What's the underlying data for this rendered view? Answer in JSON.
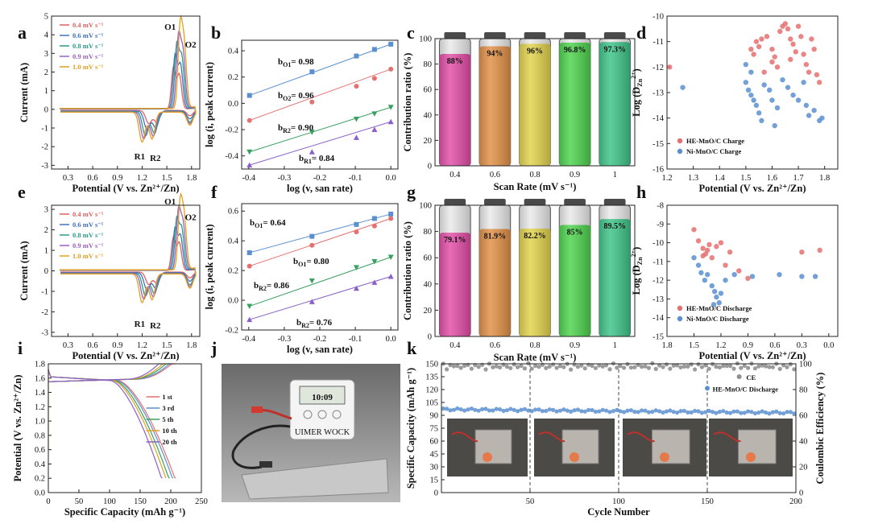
{
  "panel_labels": [
    "a",
    "b",
    "c",
    "d",
    "e",
    "f",
    "g",
    "h",
    "i",
    "j",
    "k"
  ],
  "colors": {
    "c04": "#e06060",
    "c06": "#3f70c0",
    "c08": "#2a9a8a",
    "c09": "#9a60c0",
    "c10": "#e0a020",
    "red": "#e57070",
    "blue": "#5b8fd0",
    "green": "#3aa060",
    "purple": "#8a60c8",
    "teal": "#4ab0c0",
    "gray": "#909090"
  },
  "chart_data": [
    {
      "id": "a",
      "type": "line",
      "xlabel": "Potential (V vs. Zn²⁺/Zn)",
      "ylabel": "Current (mA)",
      "xlim": [
        0.1,
        1.9
      ],
      "ylim": [
        -3.2,
        5
      ],
      "xticks": [
        "0.3",
        "0.6",
        "0.9",
        "1.2",
        "1.5",
        "1.8"
      ],
      "yticks": [
        "-3",
        "-2",
        "-1",
        "0",
        "1",
        "2",
        "3",
        "4",
        "5"
      ],
      "legend": [
        "0.4 mV s⁻¹",
        "0.6 mV s⁻¹",
        "0.8 mV s⁻¹",
        "0.9 mV s⁻¹",
        "1.0 mV s⁻¹"
      ],
      "peaks": [
        "O1",
        "O2",
        "R1",
        "R2"
      ],
      "scan_rates": [
        0.4,
        0.6,
        0.8,
        0.9,
        1.0
      ],
      "o_peak_current": [
        2.2,
        2.8,
        3.3,
        3.6,
        4.0
      ],
      "r_peak_current": [
        -0.7,
        -1.0,
        -1.3,
        -1.45,
        -1.6
      ]
    },
    {
      "id": "b",
      "type": "scatter",
      "xlabel": "log (v, san rate)",
      "ylabel": "log (i, peak current)",
      "xlim": [
        -0.42,
        0.02
      ],
      "ylim": [
        -0.5,
        0.48
      ],
      "xticks": [
        "-0.4",
        "-0.3",
        "-0.2",
        "-0.1",
        "0.0"
      ],
      "yticks": [
        "-0.4",
        "-0.2",
        "0.0",
        "0.2",
        "0.4"
      ],
      "x": [
        -0.398,
        -0.222,
        -0.097,
        -0.046,
        0.0
      ],
      "series": [
        {
          "name": "O1",
          "label": "b",
          "sub": "O1",
          "value": "= 0.98",
          "values": [
            0.06,
            0.24,
            0.36,
            0.41,
            0.45
          ]
        },
        {
          "name": "O2",
          "label": "b",
          "sub": "O2",
          "value": "= 0.96",
          "values": [
            -0.13,
            0.01,
            0.13,
            0.19,
            0.26
          ]
        },
        {
          "name": "R2",
          "label": "b",
          "sub": "R2",
          "value": "= 0.90",
          "values": [
            -0.37,
            -0.22,
            -0.12,
            -0.08,
            -0.03
          ]
        },
        {
          "name": "R1",
          "label": "b",
          "sub": "R1",
          "value": "= 0.84",
          "values": [
            -0.47,
            -0.37,
            -0.26,
            -0.2,
            -0.14
          ]
        }
      ]
    },
    {
      "id": "c",
      "type": "bar",
      "xlabel": "Scan Rate (mV s⁻¹)",
      "ylabel": "Contribution ratio (%)",
      "ylim": [
        0,
        100
      ],
      "yticks": [
        "0",
        "20",
        "40",
        "60",
        "80",
        "100"
      ],
      "categories": [
        "0.4",
        "0.6",
        "0.8",
        "0.9",
        "1"
      ],
      "values": [
        88,
        94,
        96,
        96.8,
        97.3
      ],
      "labels": [
        "88%",
        "94%",
        "96%",
        "96.8%",
        "97.3%"
      ]
    },
    {
      "id": "d",
      "type": "scatter",
      "xlabel": "Potential (V vs. Zn²⁺/Zn)",
      "ylabel": "Log (D",
      "ylabel_sub": "Zn",
      "ylabel_sup": "2+",
      "ylabel_end": ")",
      "xlim": [
        1.2,
        1.85
      ],
      "ylim": [
        -16,
        -10
      ],
      "xticks": [
        "1.2",
        "1.3",
        "1.4",
        "1.5",
        "1.6",
        "1.7",
        "1.8"
      ],
      "yticks": [
        "-16",
        "-15",
        "-14",
        "-13",
        "-12",
        "-11",
        "-10"
      ],
      "legend": [
        "HE-MnO/C Charge",
        "Ni-MnO/C Charge"
      ],
      "series": [
        {
          "name": "HE-MnO/C Charge",
          "points": [
            [
              1.21,
              -12
            ],
            [
              1.52,
              -11.3
            ],
            [
              1.53,
              -11.5
            ],
            [
              1.54,
              -11
            ],
            [
              1.55,
              -11.2
            ],
            [
              1.56,
              -10.9
            ],
            [
              1.58,
              -10.8
            ],
            [
              1.6,
              -11.3
            ],
            [
              1.61,
              -11.6
            ],
            [
              1.62,
              -12
            ],
            [
              1.63,
              -10.6
            ],
            [
              1.64,
              -10.4
            ],
            [
              1.65,
              -10.3
            ],
            [
              1.66,
              -10.5
            ],
            [
              1.67,
              -10.9
            ],
            [
              1.68,
              -11.1
            ],
            [
              1.69,
              -11.4
            ],
            [
              1.7,
              -10.4
            ],
            [
              1.71,
              -10.8
            ],
            [
              1.72,
              -11.5
            ],
            [
              1.73,
              -11.9
            ],
            [
              1.74,
              -12.2
            ],
            [
              1.75,
              -10.9
            ],
            [
              1.76,
              -11.3
            ],
            [
              1.77,
              -12.3
            ],
            [
              1.78,
              -12.6
            ],
            [
              1.6,
              -11.8
            ],
            [
              1.67,
              -11.7
            ],
            [
              1.57,
              -12.2
            ]
          ]
        },
        {
          "name": "Ni-MnO/C Charge",
          "points": [
            [
              1.26,
              -12.8
            ],
            [
              1.5,
              -12.6
            ],
            [
              1.51,
              -12.9
            ],
            [
              1.52,
              -13.1
            ],
            [
              1.53,
              -13.3
            ],
            [
              1.54,
              -13.5
            ],
            [
              1.55,
              -13.8
            ],
            [
              1.57,
              -12.7
            ],
            [
              1.59,
              -12.9
            ],
            [
              1.6,
              -13.3
            ],
            [
              1.62,
              -13.6
            ],
            [
              1.64,
              -12.5
            ],
            [
              1.66,
              -12.8
            ],
            [
              1.68,
              -13.1
            ],
            [
              1.7,
              -13.3
            ],
            [
              1.72,
              -12.6
            ],
            [
              1.73,
              -13.5
            ],
            [
              1.74,
              -13.9
            ],
            [
              1.76,
              -13.7
            ],
            [
              1.78,
              -14.1
            ],
            [
              1.79,
              -14
            ],
            [
              1.56,
              -14.1
            ],
            [
              1.61,
              -14.3
            ],
            [
              1.5,
              -11.9
            ],
            [
              1.52,
              -12.2
            ]
          ]
        }
      ]
    },
    {
      "id": "e",
      "type": "line",
      "xlabel": "Potential (V vs. Zn²⁺/Zn)",
      "ylabel": "Current (mA)",
      "xlim": [
        0.1,
        1.9
      ],
      "ylim": [
        -3.2,
        3.2
      ],
      "xticks": [
        "0.3",
        "0.6",
        "0.9",
        "1.2",
        "1.5",
        "1.8"
      ],
      "yticks": [
        "-3",
        "-2",
        "-1",
        "0",
        "1",
        "2",
        "3"
      ],
      "legend": [
        "0.4 mV s⁻¹",
        "0.6 mV s⁻¹",
        "0.8 mV s⁻¹",
        "0.9 mV s⁻¹",
        "1.0 mV s⁻¹"
      ],
      "peaks": [
        "O1",
        "O2",
        "R1",
        "R2"
      ],
      "scan_rates": [
        0.4,
        0.6,
        0.8,
        0.9,
        1.0
      ],
      "o_peak_current": [
        1.6,
        2.0,
        2.4,
        2.7,
        3.0
      ],
      "r_peak_current": [
        -0.6,
        -0.85,
        -1.1,
        -1.25,
        -1.4
      ]
    },
    {
      "id": "f",
      "type": "scatter",
      "xlabel": "log (v, san rate)",
      "ylabel": "log (i, peak current)",
      "xlim": [
        -0.42,
        0.02
      ],
      "ylim": [
        -0.2,
        0.65
      ],
      "xticks": [
        "-0.4",
        "-0.3",
        "-0.2",
        "-0.1",
        "0.0"
      ],
      "yticks": [
        "-0.2",
        "0.0",
        "0.2",
        "0.4",
        "0.6"
      ],
      "x": [
        -0.398,
        -0.222,
        -0.097,
        -0.046,
        0.0
      ],
      "series": [
        {
          "name": "O1",
          "label": "b",
          "sub": "O1",
          "value": "= 0.64",
          "values": [
            0.32,
            0.43,
            0.51,
            0.55,
            0.58
          ]
        },
        {
          "name": "O1b",
          "label": "b",
          "sub": "O1",
          "value": "= 0.80",
          "values": [
            0.23,
            0.37,
            0.46,
            0.5,
            0.55
          ]
        },
        {
          "name": "R2",
          "label": "b",
          "sub": "R2",
          "value": "= 0.86",
          "values": [
            -0.04,
            0.13,
            0.22,
            0.26,
            0.29
          ]
        },
        {
          "name": "R2b",
          "label": "b",
          "sub": "R2",
          "value": "= 0.76",
          "values": [
            -0.13,
            -0.01,
            0.08,
            0.12,
            0.16
          ]
        }
      ]
    },
    {
      "id": "g",
      "type": "bar",
      "xlabel": "Scan Rate (mV s⁻¹)",
      "ylabel": "Contribution ratio (%)",
      "ylim": [
        0,
        100
      ],
      "yticks": [
        "0",
        "20",
        "40",
        "60",
        "80",
        "100"
      ],
      "categories": [
        "0.4",
        "0.6",
        "0.8",
        "0.9",
        "1"
      ],
      "values": [
        79.1,
        81.9,
        82.2,
        85,
        89.5
      ],
      "labels": [
        "79.1%",
        "81.9%",
        "82.2%",
        "85%",
        "89.5%"
      ]
    },
    {
      "id": "h",
      "type": "scatter",
      "xlabel": "Potential (V vs. Zn²⁺/Zn)",
      "ylabel": "Log (D",
      "ylabel_sub": "Zn",
      "ylabel_sup": "2+",
      "ylabel_end": ")",
      "xlim": [
        1.8,
        -0.1
      ],
      "ylim": [
        -15,
        -8
      ],
      "xticks": [
        "1.8",
        "1.5",
        "1.2",
        "0.9",
        "0.6",
        "0.3",
        "0.0"
      ],
      "yticks": [
        "-15",
        "-14",
        "-13",
        "-12",
        "-11",
        "-10",
        "-9",
        "-8"
      ],
      "legend": [
        "HE-MnO/C Discharge",
        "Ni-MnO/C Discharge"
      ],
      "series": [
        {
          "name": "HE-MnO/C Discharge",
          "points": [
            [
              1.5,
              -9.3
            ],
            [
              1.45,
              -9.9
            ],
            [
              1.4,
              -10.3
            ],
            [
              1.37,
              -10.6
            ],
            [
              1.35,
              -10.4
            ],
            [
              1.33,
              -10.1
            ],
            [
              1.3,
              -10.8
            ],
            [
              1.25,
              -10.2
            ],
            [
              1.2,
              -10
            ],
            [
              1.15,
              -11.2
            ],
            [
              1.1,
              -10.5
            ],
            [
              1.0,
              -11.5
            ],
            [
              0.9,
              -11.9
            ],
            [
              0.3,
              -10.5
            ],
            [
              0.1,
              -10.4
            ],
            [
              1.4,
              -10.7
            ]
          ]
        },
        {
          "name": "Ni-MnO/C Discharge",
          "points": [
            [
              1.5,
              -10.8
            ],
            [
              1.45,
              -11.2
            ],
            [
              1.42,
              -11.6
            ],
            [
              1.38,
              -12
            ],
            [
              1.35,
              -11.7
            ],
            [
              1.3,
              -12.3
            ],
            [
              1.27,
              -12.6
            ],
            [
              1.25,
              -12.9
            ],
            [
              1.22,
              -13.2
            ],
            [
              1.2,
              -12.7
            ],
            [
              1.15,
              -12
            ],
            [
              1.05,
              -11.7
            ],
            [
              0.85,
              -11.8
            ],
            [
              0.55,
              -11.7
            ],
            [
              0.3,
              -11.8
            ],
            [
              0.15,
              -11.8
            ],
            [
              1.28,
              -13.3
            ]
          ]
        }
      ]
    },
    {
      "id": "i",
      "type": "line",
      "xlabel": "Specific Capacity (mAh g⁻¹)",
      "ylabel": "Potential (V vs. Zn²⁺/Zn)",
      "xlim": [
        0,
        250
      ],
      "ylim": [
        0,
        1.8
      ],
      "xticks": [
        "0",
        "50",
        "100",
        "150",
        "200",
        "250"
      ],
      "yticks": [
        "0.0",
        "0.2",
        "0.4",
        "0.6",
        "0.8",
        "1.0",
        "1.2",
        "1.4",
        "1.6",
        "1.8"
      ],
      "legend": [
        "1 st",
        "3 rd",
        "5 th",
        "10 th",
        "20 th"
      ],
      "end_capacity": [
        208,
        204,
        198,
        193,
        186
      ]
    },
    {
      "id": "k",
      "type": "scatter",
      "xlabel": "Cycle Number",
      "ylabel": "Specific Capacity (mAh g⁻¹)",
      "y2label": "Coulombic Efficiency (%)",
      "xlim": [
        0,
        200
      ],
      "ylim": [
        0,
        150
      ],
      "y2lim": [
        0,
        100
      ],
      "xticks": [
        "50",
        "100",
        "150",
        "200"
      ],
      "yticks": [
        "0",
        "15",
        "30",
        "45",
        "60",
        "75",
        "90",
        "105",
        "120",
        "135",
        "150"
      ],
      "y2ticks": [
        "0",
        "20",
        "40",
        "60",
        "80",
        "100"
      ],
      "legend": [
        "CE",
        "HE-MnO/C Discharge"
      ],
      "ce_mean": 98,
      "capacity_mean": 97
    }
  ],
  "panel_j": {
    "timer_display": "10:09",
    "timer_brand": "UIMER WOCK"
  }
}
